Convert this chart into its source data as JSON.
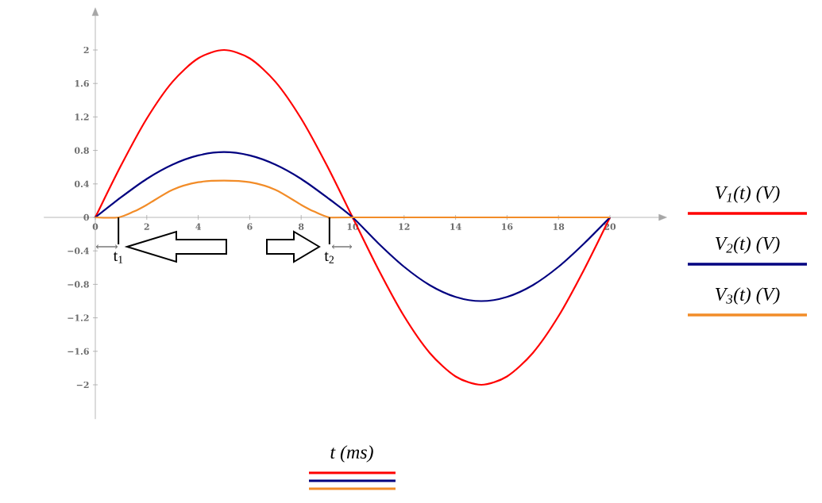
{
  "chart_data": {
    "type": "line",
    "xlabel": "t (ms)",
    "xlim": [
      -2,
      21.9
    ],
    "ylim": [
      -2.41,
      2.41
    ],
    "xticks": [
      0,
      2,
      4,
      6,
      8,
      10,
      12,
      14,
      16,
      18,
      20
    ],
    "yticks": [
      {
        "value": -2,
        "label": "−2"
      },
      {
        "value": -1.6,
        "label": "−1.6"
      },
      {
        "value": -1.2,
        "label": "−1.2"
      },
      {
        "value": -0.8,
        "label": "−0.8"
      },
      {
        "value": -0.4,
        "label": "−0.4"
      },
      0,
      0.4,
      0.8,
      1.2,
      1.6,
      2
    ],
    "grid": false,
    "legend": "right",
    "marker": "none",
    "line_style": "solid",
    "series": [
      {
        "name": "V$_{1}$(t) (V)",
        "color": "#ff0000",
        "x": [
          0,
          1,
          2,
          3,
          4,
          5,
          6,
          7,
          8,
          9,
          10,
          11,
          12,
          13,
          14,
          15,
          16,
          17,
          18,
          19,
          20
        ],
        "values": [
          0,
          0.62,
          1.18,
          1.62,
          1.9,
          2,
          1.9,
          1.62,
          1.18,
          0.62,
          0,
          -0.62,
          -1.18,
          -1.62,
          -1.9,
          -2,
          -1.9,
          -1.62,
          -1.18,
          -0.62,
          0
        ]
      },
      {
        "name": "V$_{2}$(t) (V)",
        "color": "#000080",
        "x": [
          0,
          1,
          2,
          3,
          4,
          5,
          6,
          7,
          8,
          9,
          10,
          11,
          12,
          13,
          14,
          15,
          16,
          17,
          18,
          19,
          20
        ],
        "values": [
          0,
          0.24,
          0.46,
          0.63,
          0.74,
          0.78,
          0.74,
          0.63,
          0.46,
          0.24,
          0,
          -0.31,
          -0.59,
          -0.81,
          -0.95,
          -1,
          -0.95,
          -0.81,
          -0.59,
          -0.31,
          0
        ]
      },
      {
        "name": "V$_{3}$(t) (V)",
        "color": "#f28c28",
        "x": [
          0,
          0.9,
          1.5,
          2,
          3,
          4,
          5,
          6,
          7,
          8,
          8.5,
          9.1,
          10,
          20
        ],
        "values": [
          0,
          0,
          0.07,
          0.15,
          0.33,
          0.42,
          0.44,
          0.42,
          0.33,
          0.15,
          0.07,
          0,
          0,
          0
        ]
      }
    ],
    "annotations": [
      {
        "text": "t$_{1}$",
        "x": 0.9,
        "y": 0
      },
      {
        "text": "t$_{2}$",
        "x": 9.1,
        "y": 0
      }
    ]
  }
}
